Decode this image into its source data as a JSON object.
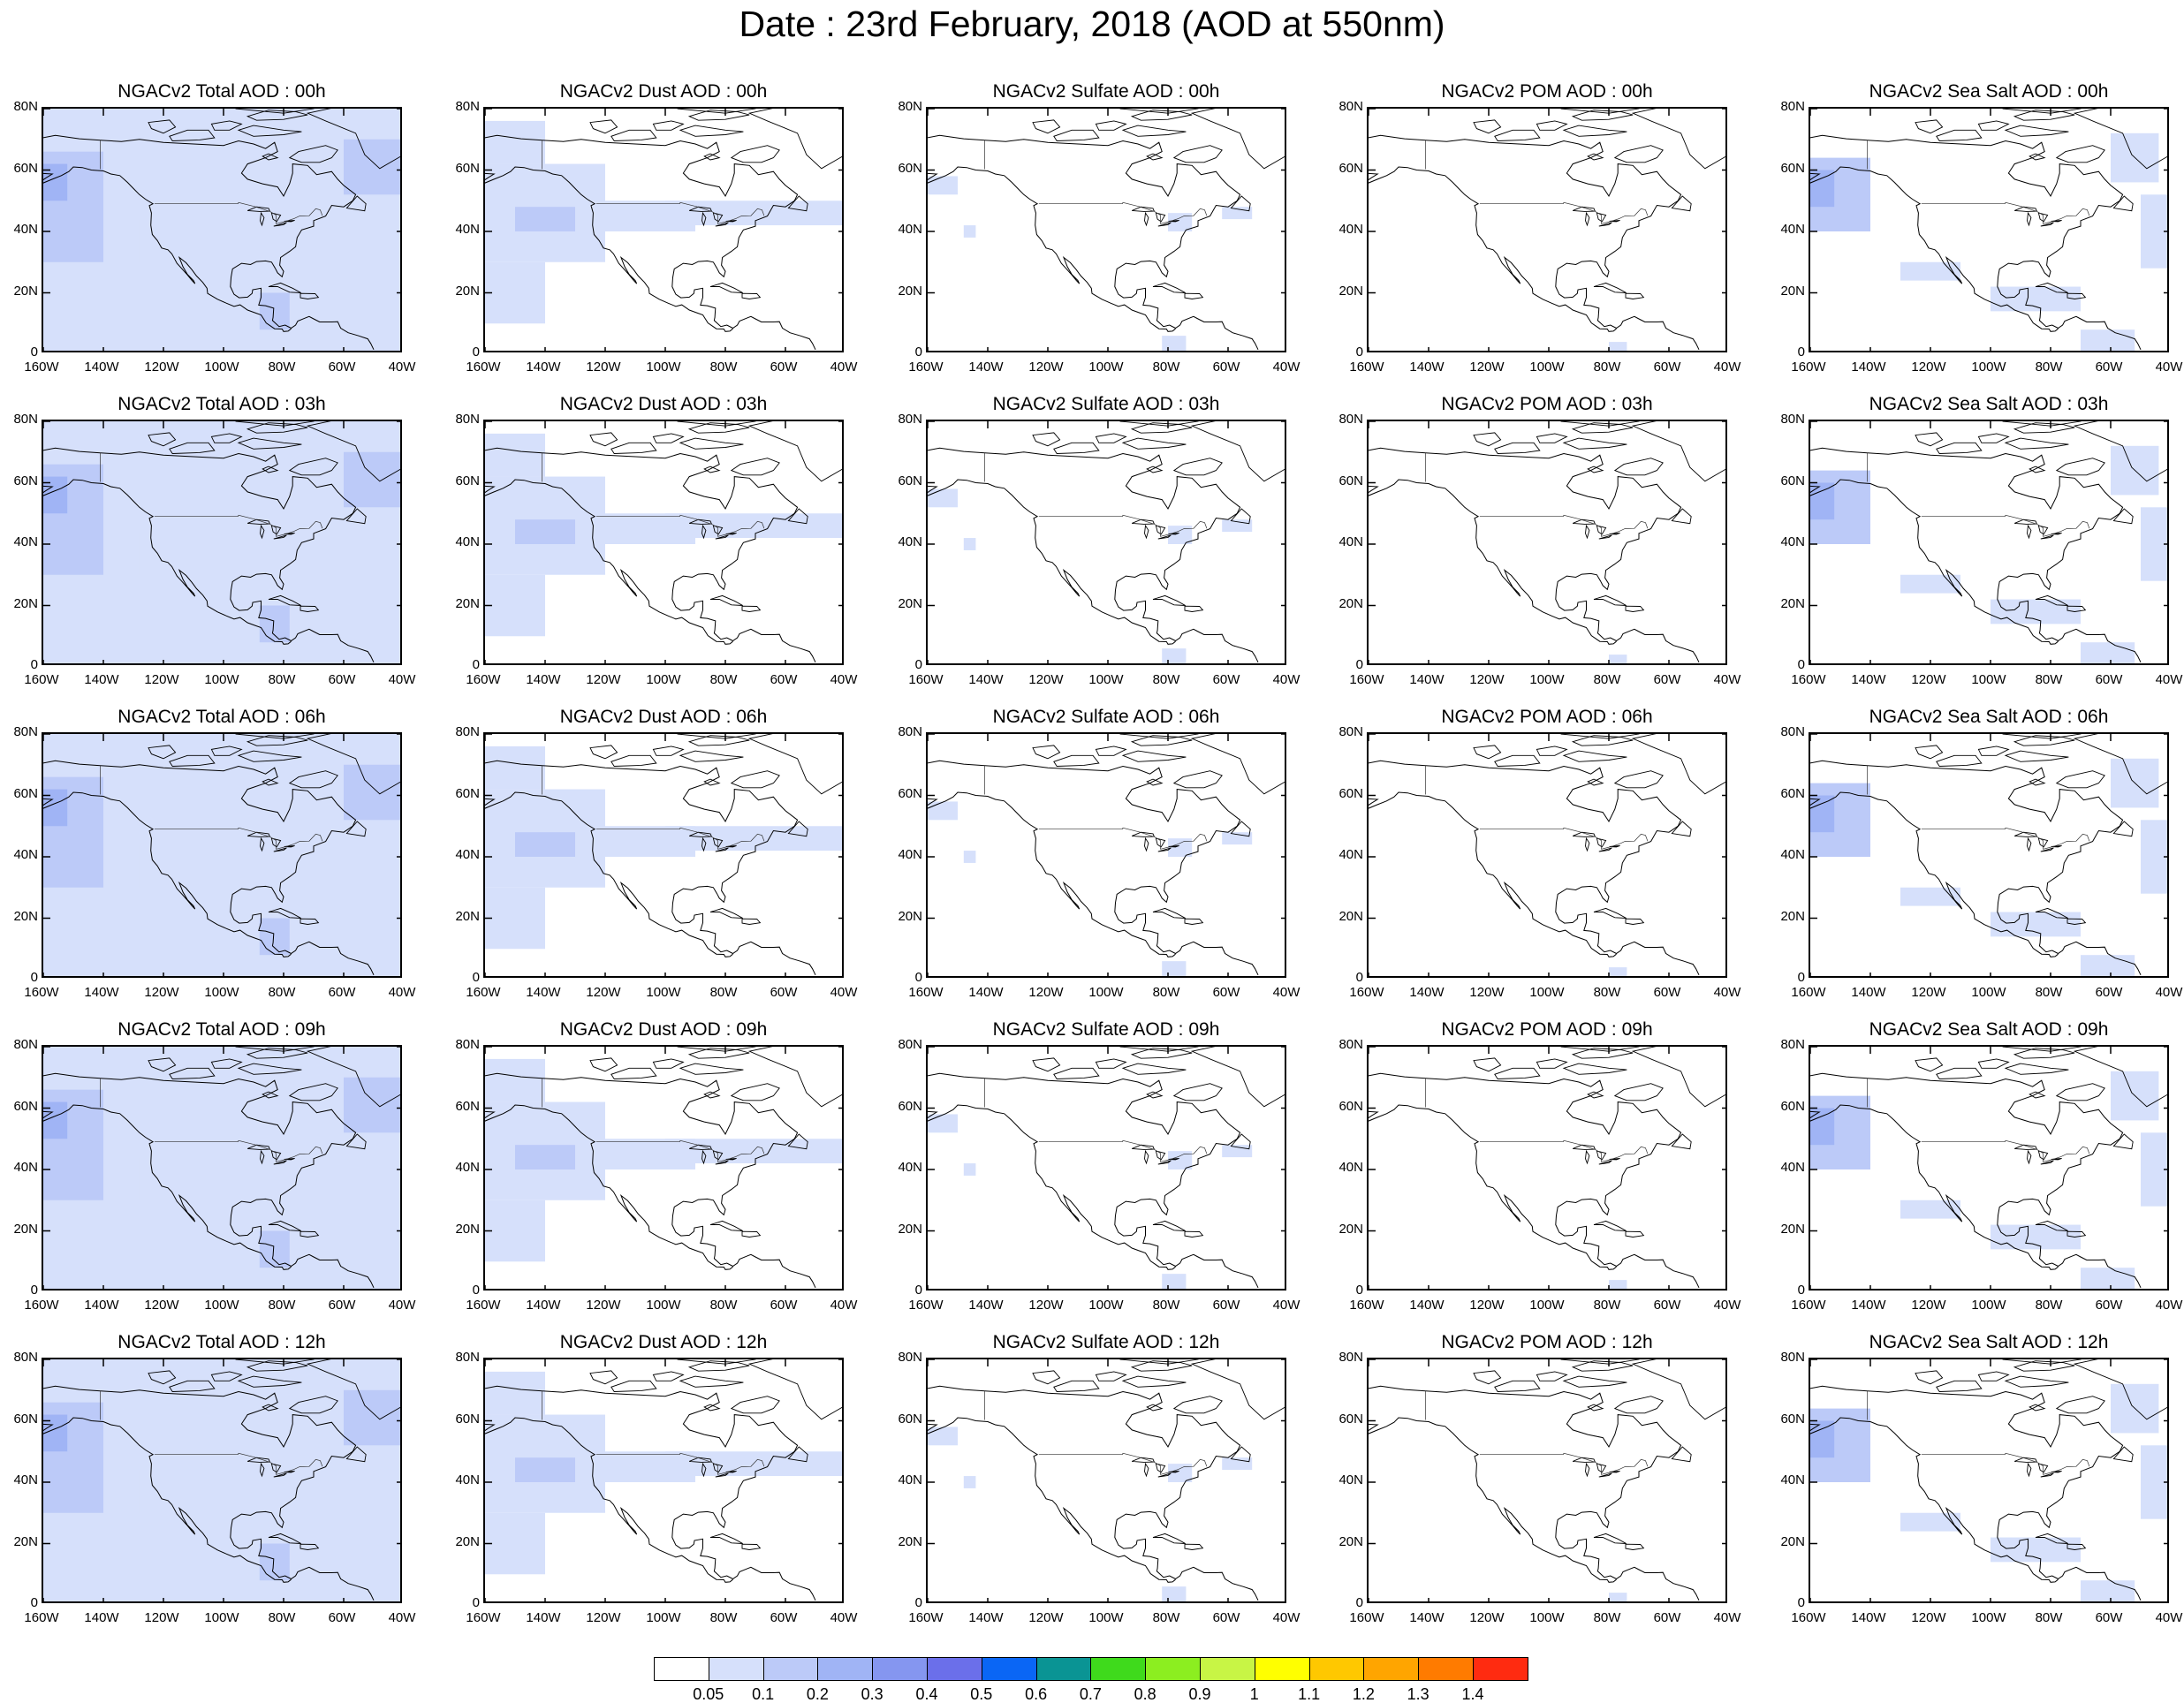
{
  "title": "Date : 23rd February, 2018 (AOD at 550nm)",
  "panels": [
    [
      "NGACv2 Total AOD : 00h",
      "NGACv2 Dust AOD : 00h",
      "NGACv2 Sulfate AOD : 00h",
      "NGACv2 POM AOD : 00h",
      "NGACv2 Sea Salt AOD : 00h"
    ],
    [
      "NGACv2 Total AOD : 03h",
      "NGACv2 Dust AOD : 03h",
      "NGACv2 Sulfate AOD : 03h",
      "NGACv2 POM AOD : 03h",
      "NGACv2 Sea Salt AOD : 03h"
    ],
    [
      "NGACv2 Total AOD : 06h",
      "NGACv2 Dust AOD : 06h",
      "NGACv2 Sulfate AOD : 06h",
      "NGACv2 POM AOD : 06h",
      "NGACv2 Sea Salt AOD : 06h"
    ],
    [
      "NGACv2 Total AOD : 09h",
      "NGACv2 Dust AOD : 09h",
      "NGACv2 Sulfate AOD : 09h",
      "NGACv2 POM AOD : 09h",
      "NGACv2 Sea Salt  AOD : 09h"
    ],
    [
      "NGACv2 Total AOD  : 12h",
      "NGACv2 Dust AOD : 12h",
      "NGACv2 Sulfate AOD : 12h",
      "NGACv2 POM  AOD : 12h",
      "NGACv2 Sea Salt  AOD : 12h"
    ]
  ],
  "axes": {
    "lat_labels": [
      "80N",
      "60N",
      "40N",
      "20N",
      "0"
    ],
    "lon_labels": [
      "160W",
      "140W",
      "120W",
      "100W",
      "80W",
      "60W",
      "40W"
    ],
    "lat_range": [
      0,
      80
    ],
    "lon_range": [
      -160,
      -40
    ]
  },
  "colorbar": {
    "labels": [
      "0.05",
      "0.1",
      "0.2",
      "0.3",
      "0.4",
      "0.5",
      "0.6",
      "0.7",
      "0.8",
      "0.9",
      "1",
      "1.1",
      "1.2",
      "1.3",
      "1.4"
    ],
    "colors": [
      "#ffffff",
      "#d6e0fb",
      "#bccaf8",
      "#a0b4f5",
      "#8596f0",
      "#6b6fea",
      "#0a66f5",
      "#0a9494",
      "#3fda1c",
      "#8cee20",
      "#c8f545",
      "#ffff00",
      "#ffc800",
      "#ffa500",
      "#ff7b00",
      "#ff2b10"
    ]
  },
  "colors": {
    "aerosol_light": "#d6e0fb",
    "aerosol_mid": "#bccaf8",
    "aerosol_dark": "#a0b4f5",
    "coastline": "#000000"
  }
}
